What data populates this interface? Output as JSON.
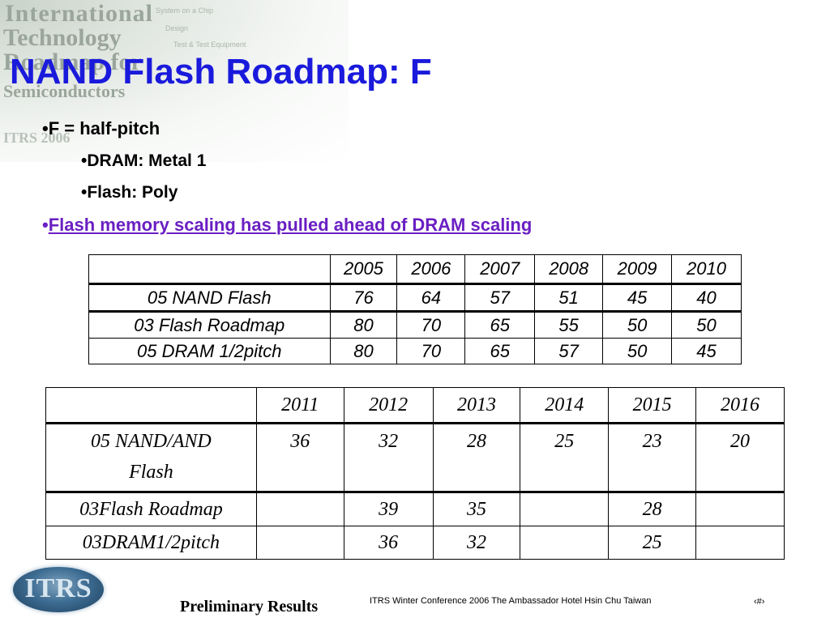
{
  "watermark": {
    "line1": "International",
    "line2": "Technology",
    "line3": "Roadmap for",
    "line4": "Semiconductors",
    "line5": "ITRS 2006",
    "small1": "System on a Chip",
    "small2": "Design",
    "small3": "Test & Test Equipment"
  },
  "title": "NAND Flash Roadmap:  F",
  "bullets": {
    "b1": "F = half-pitch",
    "b2": "DRAM:  Metal 1",
    "b3": "Flash:  Poly",
    "b4": "Flash memory scaling has pulled ahead of DRAM scaling"
  },
  "bullet_char": "•",
  "table1": {
    "header": [
      "",
      "2005",
      "2006",
      "2007",
      "2008",
      "2009",
      "2010"
    ],
    "rows": [
      [
        "05 NAND Flash",
        "76",
        "64",
        "57",
        "51",
        "45",
        "40"
      ],
      [
        "03 Flash Roadmap",
        "80",
        "70",
        "65",
        "55",
        "50",
        "50"
      ],
      [
        "05 DRAM 1/2pitch",
        "80",
        "70",
        "65",
        "57",
        "50",
        "45"
      ]
    ]
  },
  "table2": {
    "header": [
      "",
      "2011",
      "2012",
      "2013",
      "2014",
      "2015",
      "2016"
    ],
    "row1_label_a": "05 NAND/AND",
    "row1_label_b": "Flash",
    "rows": [
      [
        "",
        "36",
        "32",
        "28",
        "25",
        "23",
        "20"
      ],
      [
        "03Flash Roadmap",
        "",
        "39",
        "35",
        "",
        "28",
        ""
      ],
      [
        "03DRAM1/2pitch",
        "",
        "36",
        "32",
        "",
        "25",
        ""
      ]
    ]
  },
  "logo_text": "ITRS",
  "preliminary": "Preliminary Results",
  "footer": "ITRS Winter Conference 2006    The Ambassador Hotel   Hsin Chu  Taiwan",
  "page_number": "‹#›",
  "colors": {
    "title": "#1a1adc",
    "highlight_bullet": "#6a1fc2"
  }
}
